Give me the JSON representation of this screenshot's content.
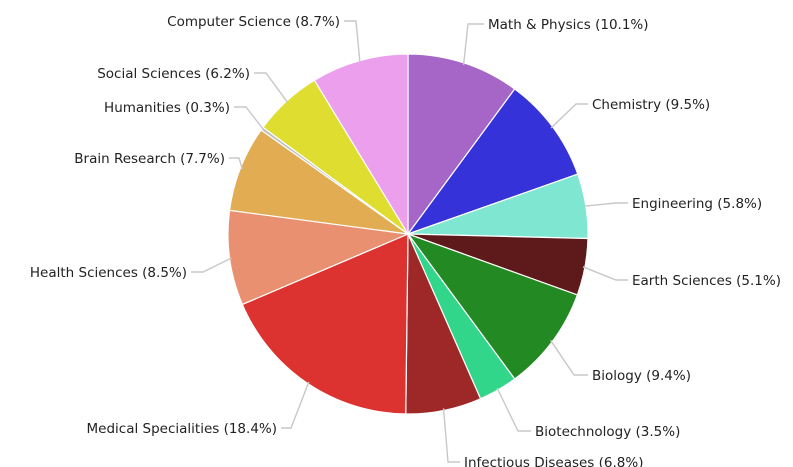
{
  "chart_data": {
    "type": "pie",
    "title": "",
    "start": "top",
    "direction": "clockwise",
    "slices": [
      {
        "label": "Math & Physics (10.1%)",
        "value": 10.1,
        "color": "#a566c8"
      },
      {
        "label": "Chemistry (9.5%)",
        "value": 9.5,
        "color": "#3432d8"
      },
      {
        "label": "Engineering (5.8%)",
        "value": 5.8,
        "color": "#7fe6d2"
      },
      {
        "label": "Earth Sciences (5.1%)",
        "value": 5.1,
        "color": "#5e1a1a"
      },
      {
        "label": "Biology (9.4%)",
        "value": 9.4,
        "color": "#238a23"
      },
      {
        "label": "Biotechnology (3.5%)",
        "value": 3.5,
        "color": "#32d68a"
      },
      {
        "label": "Infectious Diseases (6.8%)",
        "value": 6.8,
        "color": "#9e2828"
      },
      {
        "label": "Medical Specialities (18.4%)",
        "value": 18.4,
        "color": "#dc3230"
      },
      {
        "label": "Health Sciences (8.5%)",
        "value": 8.5,
        "color": "#e89070"
      },
      {
        "label": "Brain Research (7.7%)",
        "value": 7.7,
        "color": "#e2ad52"
      },
      {
        "label": "Humanities (0.3%)",
        "value": 0.3,
        "color": "#bebebe"
      },
      {
        "label": "Social Sciences (6.2%)",
        "value": 6.2,
        "color": "#dedd30"
      },
      {
        "label": "Computer Science (8.7%)",
        "value": 8.7,
        "color": "#ec9fec"
      }
    ]
  }
}
